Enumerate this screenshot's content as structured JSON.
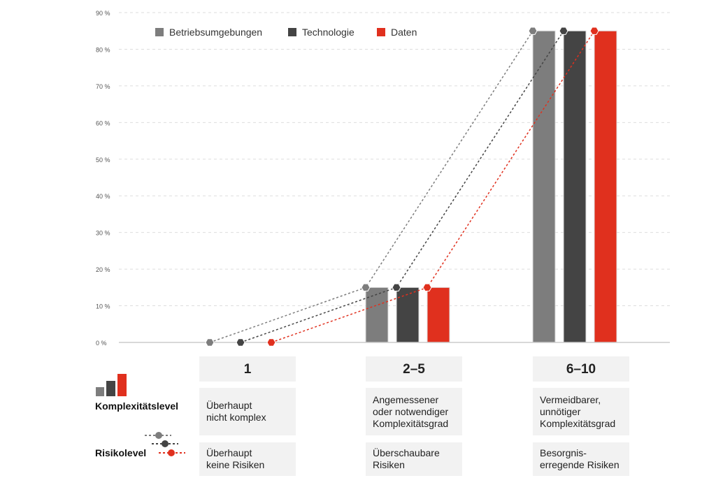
{
  "chart_data": {
    "type": "bar",
    "categories": [
      "1",
      "2–5",
      "6–10"
    ],
    "series": [
      {
        "name": "Betriebsumgebungen",
        "color": "#7d7d7d",
        "values": [
          0,
          15,
          85
        ]
      },
      {
        "name": "Technologie",
        "color": "#444444",
        "values": [
          0,
          15,
          85
        ]
      },
      {
        "name": "Daten",
        "color": "#e0301e",
        "values": [
          0,
          15,
          85
        ]
      }
    ],
    "overlay": "dotted lines with hexagon markers connecting the same values (Risikolevel)",
    "ylim": [
      0,
      90
    ],
    "yticks": [
      "0 %",
      "10 %",
      "20 %",
      "30 %",
      "40 %",
      "50 %",
      "60 %",
      "70 %",
      "80 %",
      "90 %"
    ],
    "grid": true,
    "legend": "top-left"
  },
  "rows": {
    "complexity_label": "Komplexitätslevel",
    "risk_label": "Risikolevel",
    "complexity": [
      "Überhaupt\nnicht komplex",
      "Angemessener\noder notwendiger\nKomplexitätsgrad",
      "Vermeidbarer,\nunnötiger\nKomplexitätsgrad"
    ],
    "risk": [
      "Überhaupt\nkeine Risiken",
      "Überschaubare\nRisiken",
      "Besorgnis-\nerregende Risiken"
    ]
  }
}
